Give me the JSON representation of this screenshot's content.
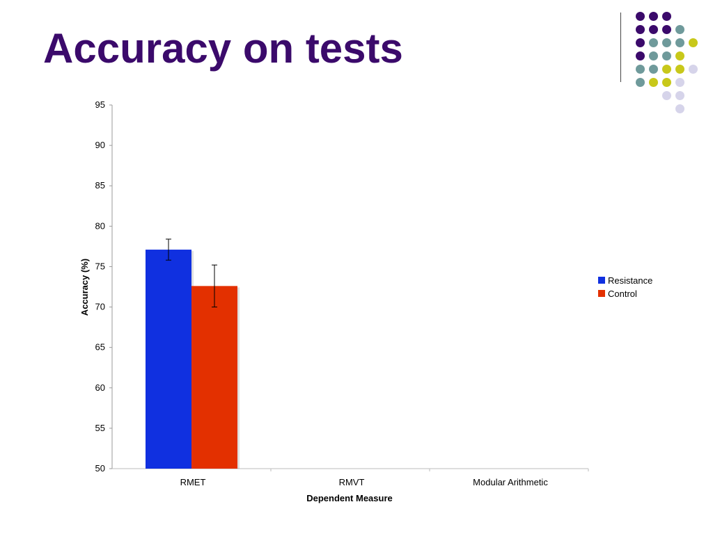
{
  "slide": {
    "title": "Accuracy on tests"
  },
  "decoration": {
    "dot_colors": {
      "purple": "#3b0a6b",
      "teal": "#6f9a9b",
      "yellow": "#c8c81a",
      "lavender": "#d6d4ea"
    },
    "dot_grid": [
      [
        "purple",
        "purple",
        "purple",
        null,
        null
      ],
      [
        "purple",
        "purple",
        "purple",
        "teal",
        null
      ],
      [
        "purple",
        "teal",
        "teal",
        "teal",
        "yellow"
      ],
      [
        "purple",
        "teal",
        "teal",
        "yellow",
        null
      ],
      [
        "teal",
        "teal",
        "yellow",
        "yellow",
        "lavender"
      ],
      [
        "teal",
        "yellow",
        "yellow",
        "lavender",
        null
      ],
      [
        null,
        null,
        "lavender",
        "lavender",
        null
      ],
      [
        null,
        null,
        null,
        "lavender",
        null
      ]
    ]
  },
  "chart_data": {
    "type": "bar",
    "title": "",
    "xlabel": "Dependent Measure",
    "ylabel": "Accuracy (%)",
    "ylim": [
      50,
      95
    ],
    "yticks": [
      50,
      55,
      60,
      65,
      70,
      75,
      80,
      85,
      90,
      95
    ],
    "categories": [
      "RMET",
      "RMVT",
      "Modular Arithmetic"
    ],
    "series": [
      {
        "name": "Resistance",
        "color": "#1030e0",
        "values": [
          77.1,
          null,
          null
        ],
        "error": [
          1.3,
          null,
          null
        ]
      },
      {
        "name": "Control",
        "color": "#e33000",
        "values": [
          72.6,
          null,
          null
        ],
        "error": [
          2.6,
          null,
          null
        ]
      }
    ],
    "legend": "right",
    "grid": false
  }
}
